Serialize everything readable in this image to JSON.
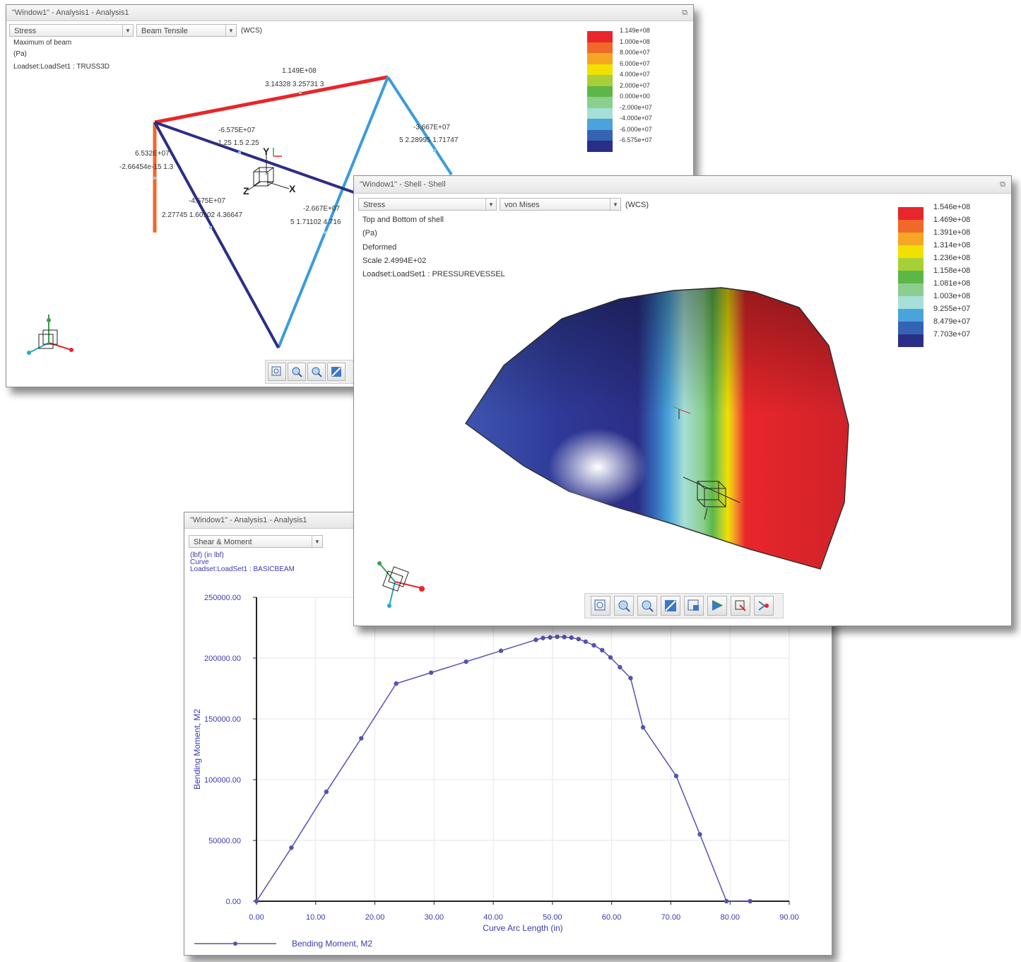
{
  "window_truss": {
    "title": "\"Window1\" - Analysis1 - Analysis1",
    "quantity_select": "Stress",
    "component_select": "Beam Tensile",
    "coord_label": "(WCS)",
    "info_line1": "Maximum of beam",
    "info_line2": "(Pa)",
    "info_line3": "Loadset:LoadSet1 :  TRUSS3D",
    "legend": [
      "1.149e+08",
      "1.000e+08",
      "8.000e+07",
      "6.000e+07",
      "4.000e+07",
      "2.000e+07",
      "0.000e+00",
      "-2.000e+07",
      "-4.000e+07",
      "-6.000e+07",
      "-6.575e+07"
    ],
    "legend_colors": [
      "#e8262b",
      "#f0682a",
      "#f5a623",
      "#f2e100",
      "#a6cf38",
      "#5cb748",
      "#8bcf8e",
      "#a6dfd7",
      "#4aa3db",
      "#3463b4",
      "#2b2e86"
    ],
    "annotations": [
      {
        "id": "a1",
        "text": "1.149E+08"
      },
      {
        "id": "a2",
        "text": "3.14328  3.25731  3"
      },
      {
        "id": "a3",
        "text": "-6.575E+07"
      },
      {
        "id": "a4",
        "text": "-1.25  1.5  2.25"
      },
      {
        "id": "a5",
        "text": "-3.667E+07"
      },
      {
        "id": "a6",
        "text": "5  2.28995  1.71747"
      },
      {
        "id": "a7",
        "text": "6.532E+07"
      },
      {
        "id": "a8",
        "text": "-2.66454e-15  1.3"
      },
      {
        "id": "a9",
        "text": "-4.575E+07"
      },
      {
        "id": "a10",
        "text": "2.27745  1.60902  4.36647"
      },
      {
        "id": "a11",
        "text": "-2.667E+07"
      },
      {
        "id": "a12",
        "text": "5  1.71102  4.716"
      }
    ],
    "axis_y": "Y",
    "axis_x": "X",
    "axis_z": "Z"
  },
  "window_shell": {
    "title": "\"Window1\" - Shell - Shell",
    "quantity_select": "Stress",
    "component_select": "von Mises",
    "coord_label": "(WCS)",
    "info_line1": "Top and Bottom of shell",
    "info_line2": "(Pa)",
    "info_line3": "Deformed",
    "info_line4": "Scale  2.4994E+02",
    "info_line5": "Loadset:LoadSet1 :  PRESSUREVESSEL",
    "legend": [
      "1.546e+08",
      "1.469e+08",
      "1.391e+08",
      "1.314e+08",
      "1.236e+08",
      "1.158e+08",
      "1.081e+08",
      "1.003e+08",
      "9.255e+07",
      "8.479e+07",
      "7.703e+07"
    ],
    "legend_colors": [
      "#e8262b",
      "#f0682a",
      "#f5a623",
      "#f2e100",
      "#a6cf38",
      "#5cb748",
      "#8bcf8e",
      "#a6dfd7",
      "#4aa3db",
      "#3463b4",
      "#2b2e86"
    ]
  },
  "window_chart": {
    "title": "\"Window1\" - Analysis1 - Analysis1",
    "select": "Shear & Moment",
    "info_line1": "(lbf)  (in lbf)",
    "info_line2": "Curve",
    "info_line3": "Loadset:LoadSet1 :  BASICBEAM",
    "legend_label": "Bending Moment, M2"
  },
  "chart_data": {
    "type": "line",
    "title": "",
    "xlabel": "Curve Arc Length (in)",
    "ylabel": "Bending Moment, M2",
    "xlim": [
      0,
      90
    ],
    "ylim": [
      0,
      250000
    ],
    "x_ticks": [
      "0.00",
      "10.00",
      "20.00",
      "30.00",
      "40.00",
      "50.00",
      "60.00",
      "70.00",
      "80.00",
      "90.00"
    ],
    "y_ticks": [
      "0.00",
      "50000.00",
      "100000.00",
      "150000.00",
      "200000.00",
      "250000.00"
    ],
    "series": [
      {
        "name": "Bending Moment, M2",
        "color": "#5552b0",
        "x": [
          0,
          5.9,
          11.8,
          17.7,
          23.6,
          29.5,
          35.4,
          41.3,
          47.2,
          48.4,
          49.6,
          50.8,
          52.0,
          53.2,
          54.4,
          55.6,
          57.0,
          58.4,
          59.8,
          61.4,
          63.2,
          65.3,
          70.9,
          74.9,
          79.4,
          83.4
        ],
        "y": [
          0,
          44000,
          90000,
          134000,
          179000,
          188000,
          197000,
          206000,
          215000,
          216500,
          217000,
          217500,
          217300,
          216800,
          215600,
          213500,
          210500,
          206500,
          200500,
          192500,
          183500,
          143000,
          103000,
          55000,
          0,
          0
        ]
      }
    ]
  }
}
